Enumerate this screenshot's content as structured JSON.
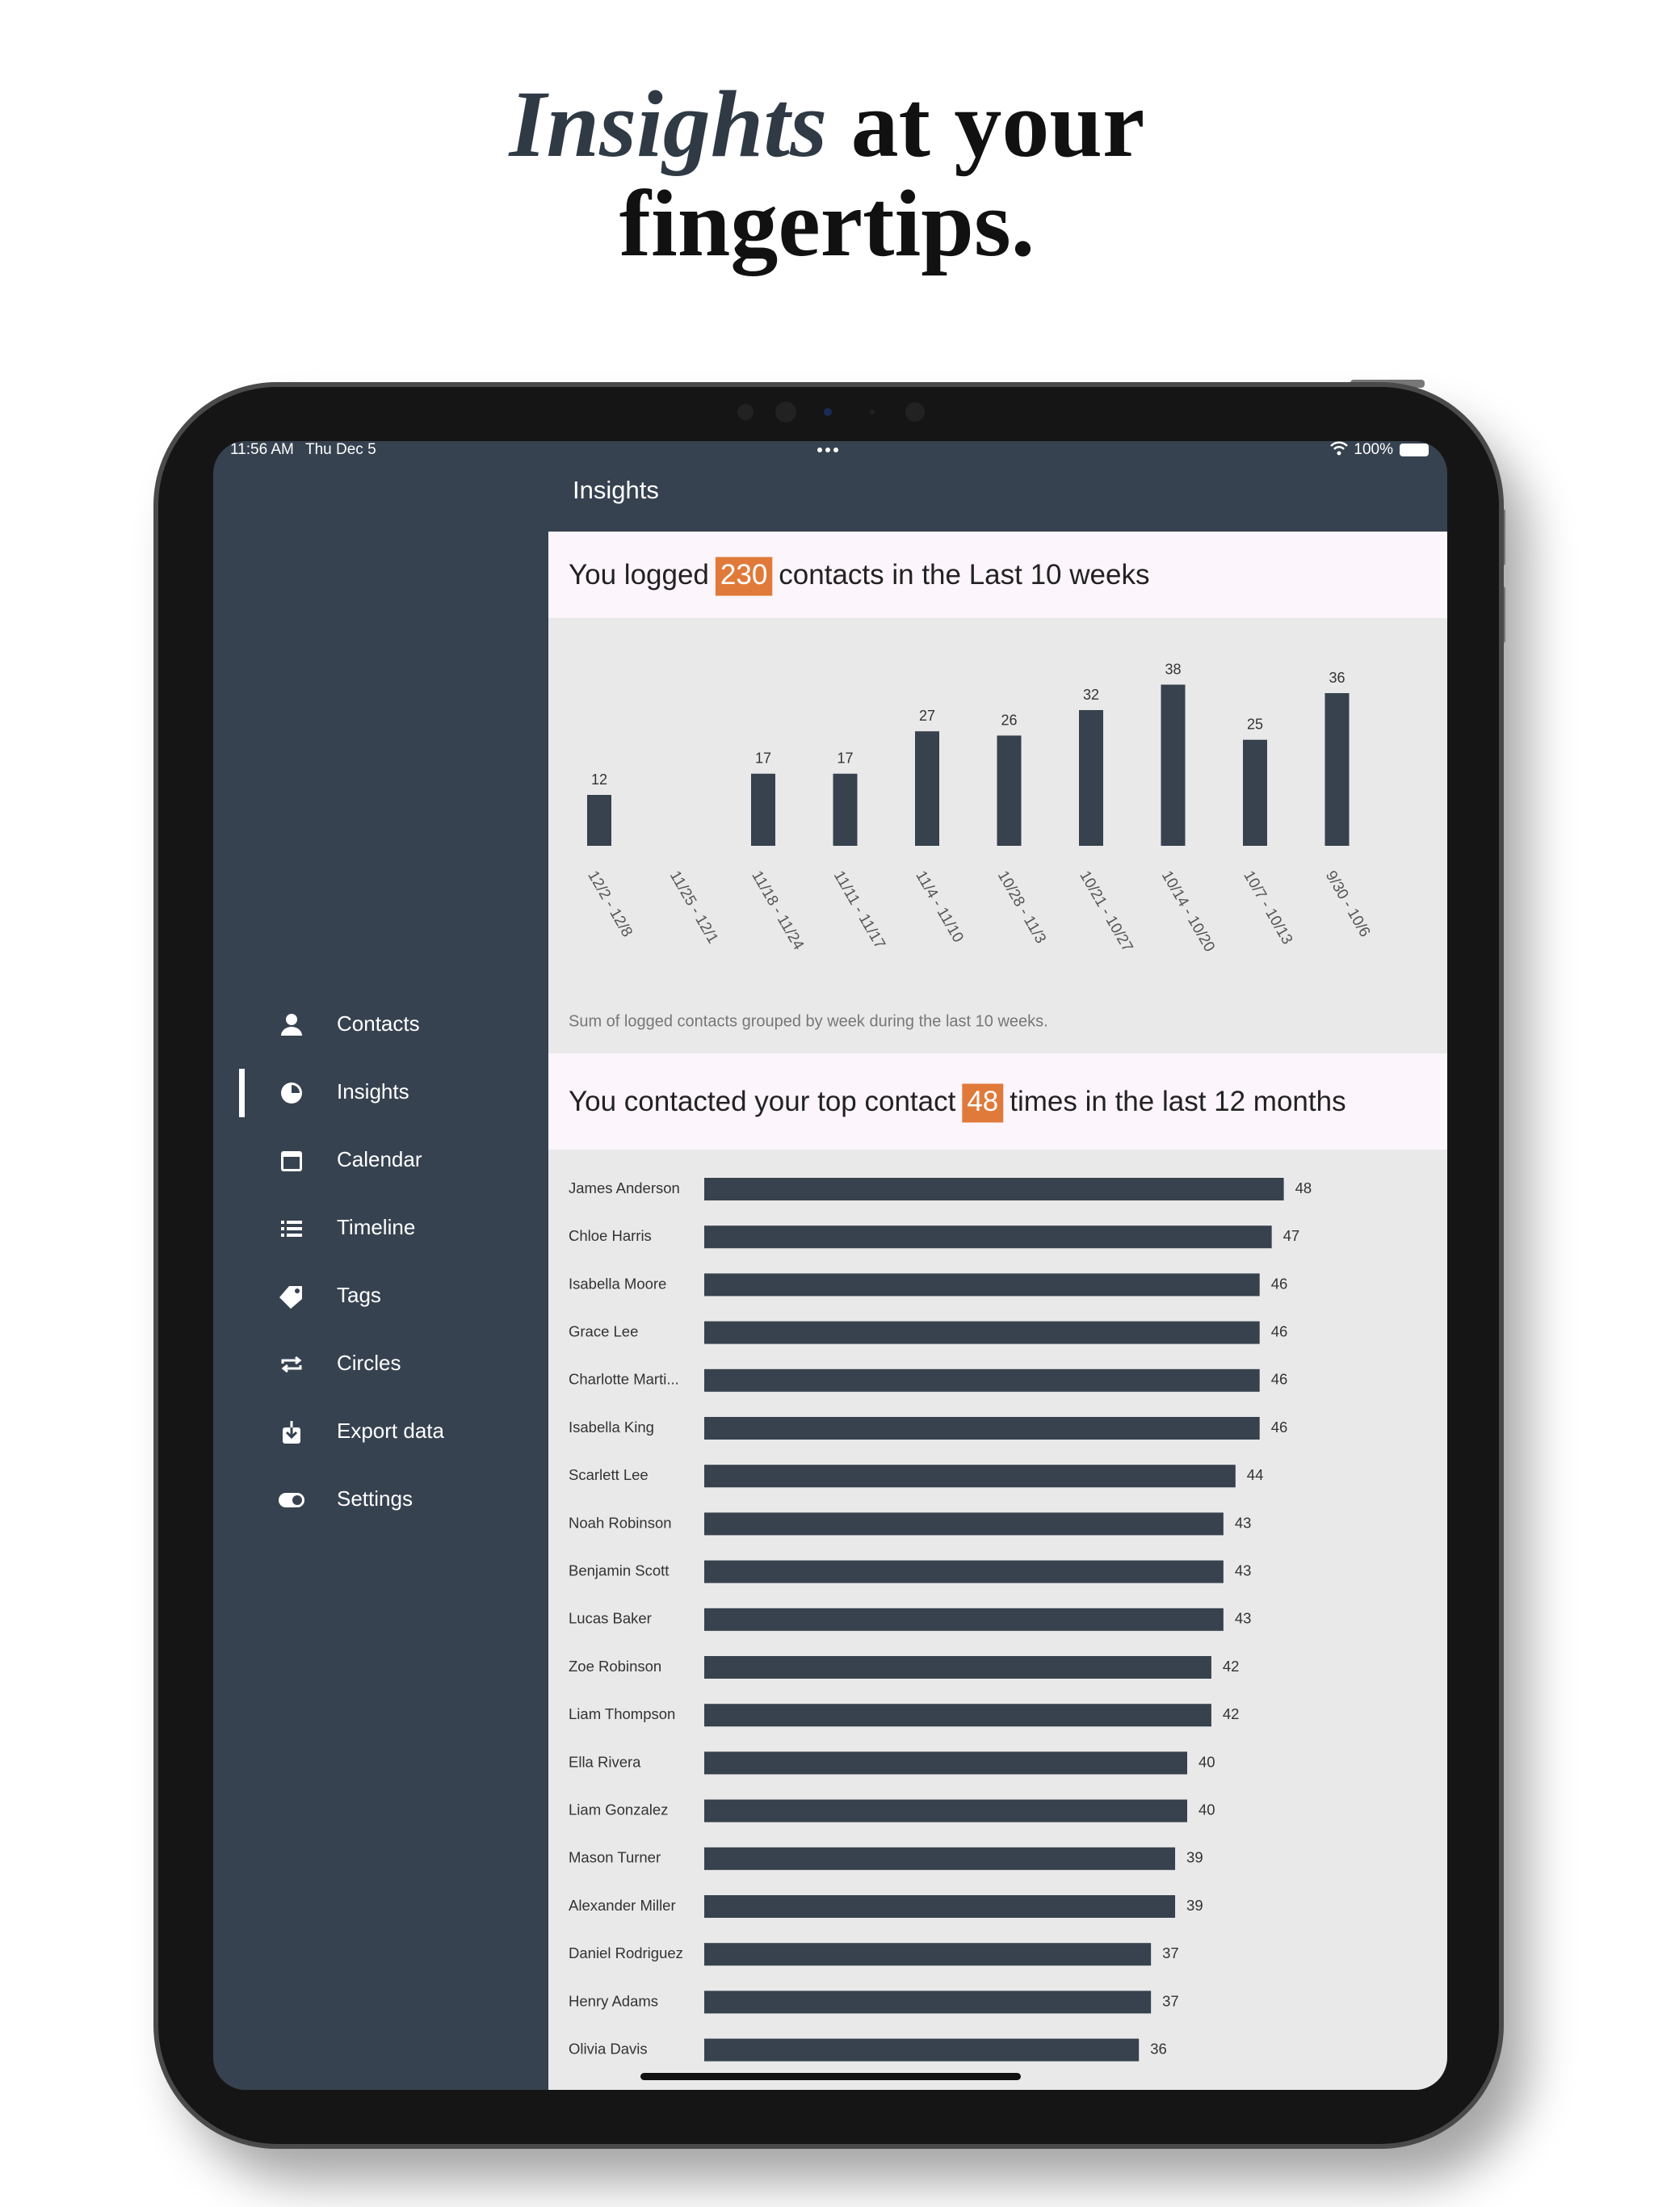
{
  "headline": {
    "italic": "Insights",
    "rest": "at your",
    "line2": "fingertips."
  },
  "status_bar": {
    "time": "11:56 AM",
    "date": "Thu Dec 5",
    "battery": "100%"
  },
  "app_title": "Insights",
  "sidebar": {
    "items": [
      "Contacts",
      "Insights",
      "Calendar",
      "Timeline",
      "Tags",
      "Circles",
      "Export data",
      "Settings"
    ]
  },
  "chart_data": [
    {
      "type": "bar",
      "orientation": "vertical",
      "title_before": "You logged",
      "title_value": 230,
      "title_after": "contacts in the Last 10 weeks",
      "categories": [
        "12/2 - 12/8",
        "11/25 - 12/1",
        "11/18 - 11/24",
        "11/11 - 11/17",
        "11/4 - 11/10",
        "10/28 - 11/3",
        "10/21 - 10/27",
        "10/14 - 10/20",
        "10/7 - 10/13",
        "9/30 - 10/6"
      ],
      "values": [
        12,
        null,
        17,
        17,
        27,
        26,
        32,
        38,
        25,
        36
      ],
      "color": "#37424e",
      "caption": "Sum of logged contacts grouped by week during the last 10 weeks."
    },
    {
      "type": "bar",
      "orientation": "horizontal",
      "title_before": "You contacted your top contact",
      "title_value": 48,
      "title_after": "times in the last 12 months",
      "categories": [
        "James Anderson",
        "Chloe Harris",
        "Isabella Moore",
        "Grace Lee",
        "Charlotte Marti...",
        "Isabella King",
        "Scarlett Lee",
        "Noah Robinson",
        "Benjamin Scott",
        "Lucas Baker",
        "Zoe Robinson",
        "Liam Thompson",
        "Ella Rivera",
        "Liam Gonzalez",
        "Mason Turner",
        "Alexander Miller",
        "Daniel Rodriguez",
        "Henry Adams",
        "Olivia Davis"
      ],
      "values": [
        48,
        47,
        46,
        46,
        46,
        46,
        44,
        43,
        43,
        43,
        42,
        42,
        40,
        40,
        39,
        39,
        37,
        37,
        36
      ],
      "color": "#37424e"
    }
  ]
}
